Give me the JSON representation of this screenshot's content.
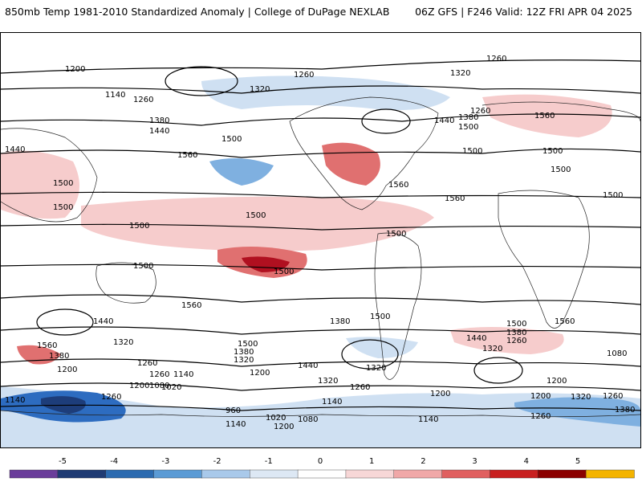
{
  "header": {
    "left": "850mb Temp 1981-2010 Standardized Anomaly | College of DuPage NEXLAB",
    "right": "06Z GFS | F246 Valid: 12Z FRI APR 04 2025"
  },
  "contour_labels": [
    "1200",
    "1140",
    "1260",
    "1320",
    "1380",
    "1440",
    "1500",
    "1560",
    "1080",
    "1020",
    "960"
  ],
  "colorbar": {
    "ticks": [
      "-5",
      "-4",
      "-3",
      "-2",
      "-1",
      "0",
      "1",
      "2",
      "3",
      "4",
      "5"
    ],
    "colors": [
      "#6a3d9a",
      "#1f3b73",
      "#2c6bb0",
      "#5b9bd5",
      "#a9c9ea",
      "#dde8f4",
      "#ffffff",
      "#f7d7d7",
      "#f0a8a8",
      "#e06060",
      "#c82020",
      "#8b0000",
      "#f4b400"
    ]
  },
  "anomaly_colors": {
    "strong_pos": "#b01020",
    "pos": "#e07070",
    "weak_pos": "#f6cccc",
    "weak_neg": "#cfe0f2",
    "neg": "#7fb0e0",
    "strong_neg": "#2d6cc0",
    "very_strong_neg": "#1d3d7a"
  }
}
